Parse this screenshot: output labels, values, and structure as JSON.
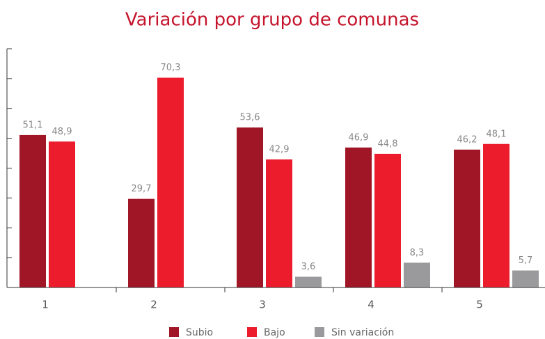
{
  "chart_data": {
    "type": "bar",
    "title": "Variación por grupo de comunas",
    "categories": [
      "1",
      "2",
      "3",
      "4",
      "5"
    ],
    "series": [
      {
        "name": "Subio",
        "color": "#a01626",
        "values": [
          51.1,
          29.7,
          53.6,
          46.9,
          46.2
        ],
        "value_labels": [
          "51,1",
          "29,7",
          "53,6",
          "46,9",
          "46,2"
        ]
      },
      {
        "name": "Bajo",
        "color": "#ec1c2d",
        "values": [
          48.9,
          70.3,
          42.9,
          44.8,
          48.1
        ],
        "value_labels": [
          "48,9",
          "70,3",
          "42,9",
          "44,8",
          "48,1"
        ]
      },
      {
        "name": "Sin variación",
        "color": "#9a9a9c",
        "values": [
          null,
          null,
          3.6,
          8.3,
          5.7
        ],
        "value_labels": [
          null,
          null,
          "3,6",
          "8,3",
          "5,7"
        ]
      }
    ],
    "ylim": [
      0,
      80
    ],
    "yticks": [
      0,
      10,
      20,
      30,
      40,
      50,
      60,
      70,
      80
    ],
    "legend": "bottom"
  }
}
